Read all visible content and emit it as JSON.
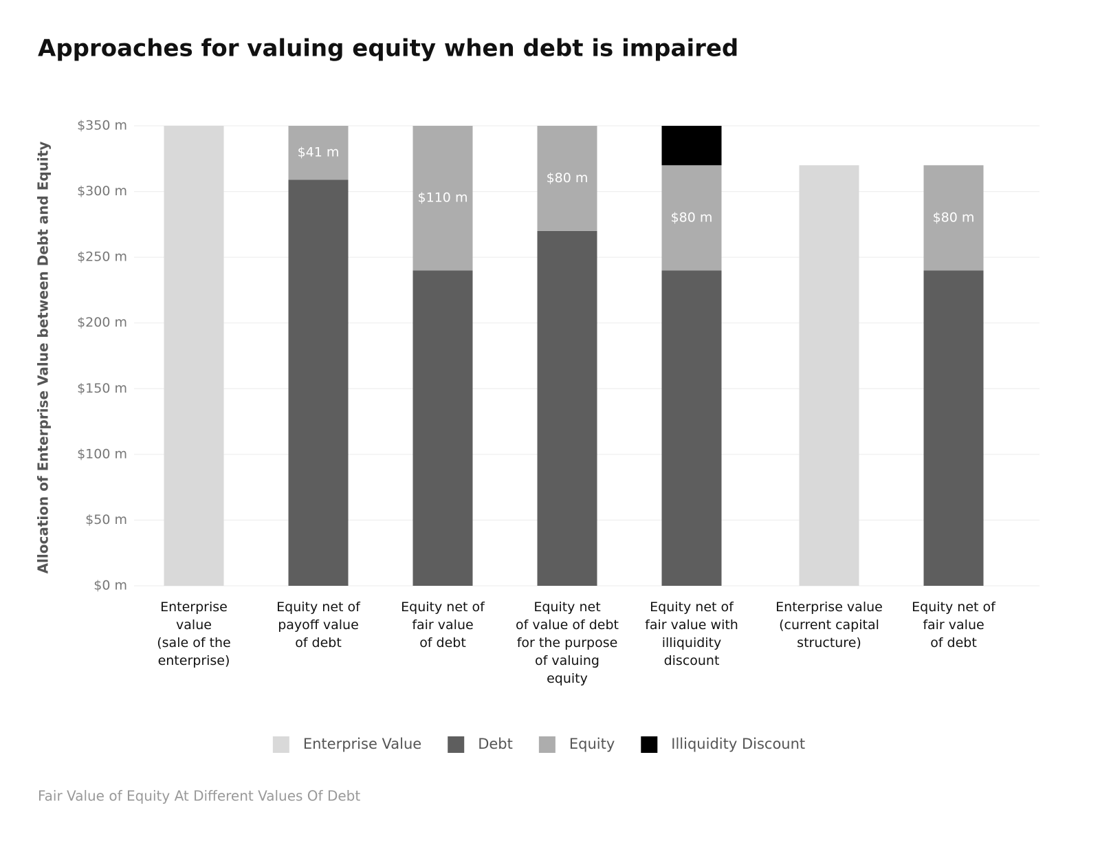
{
  "chart_data": {
    "type": "stacked_bar",
    "title": "Approaches for valuing equity when debt is impaired",
    "ylabel": "Allocation of Enterprise Value between Debt and Equity",
    "footer": "Fair Value of Equity At Different Values Of Debt",
    "categories": [
      "Enterprise\nvalue\n(sale of the\nenterprise)",
      "Equity net of\npayoff value\nof debt",
      "Equity net of\nfair value\nof debt",
      "Equity net\nof value of debt\nfor the purpose\nof valuing\nequity",
      "Equity net of\nfair value with\nilliquidity\ndiscount",
      null,
      "Enterprise value\n(current capital\nstructure)",
      "Equity net of\nfair value\nof debt"
    ],
    "series": [
      {
        "name": "Enterprise Value",
        "color": "#d9d9d9",
        "values": [
          350,
          null,
          null,
          null,
          null,
          null,
          320,
          null
        ]
      },
      {
        "name": "Debt",
        "color": "#5e5e5e",
        "values": [
          null,
          309,
          240,
          270,
          240,
          null,
          null,
          240
        ]
      },
      {
        "name": "Equity",
        "color": "#adadad",
        "values": [
          null,
          41,
          110,
          80,
          80,
          null,
          null,
          80
        ],
        "value_labels": [
          null,
          "$41 m",
          "$110 m",
          "$80 m",
          "$80 m",
          null,
          null,
          "$80 m"
        ]
      },
      {
        "name": "Illiquidity Discount",
        "color": "#000000",
        "values": [
          null,
          null,
          null,
          null,
          30,
          null,
          null,
          null
        ]
      }
    ],
    "ylim": [
      0,
      350
    ],
    "yticks": [
      {
        "value": 0,
        "label": "$0 m"
      },
      {
        "value": 50,
        "label": "$50 m"
      },
      {
        "value": 100,
        "label": "$100 m"
      },
      {
        "value": 150,
        "label": "$150 m"
      },
      {
        "value": 200,
        "label": "$200 m"
      },
      {
        "value": 250,
        "label": "$250 m"
      },
      {
        "value": 300,
        "label": "$300 m"
      },
      {
        "value": 350,
        "label": "$350 m"
      }
    ],
    "grid": true,
    "legend": "bottom"
  }
}
